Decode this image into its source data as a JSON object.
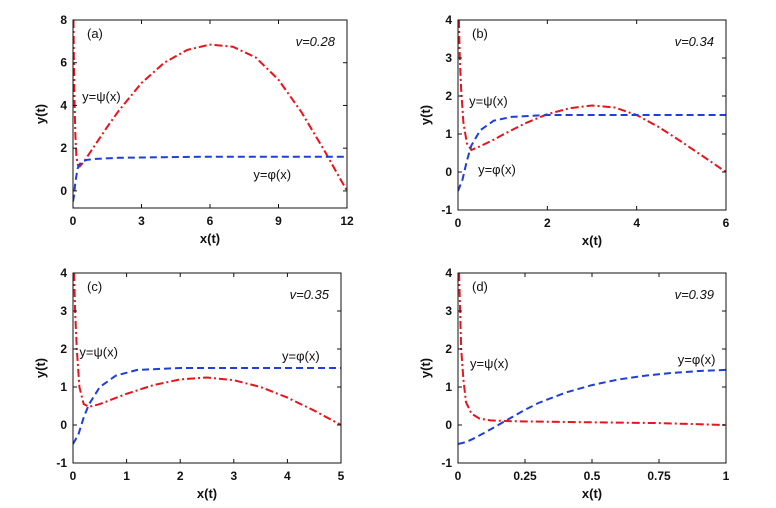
{
  "chart_data": [
    {
      "type": "line",
      "panel_label": "(a)",
      "v_label": "v=0.28",
      "xlabel": "x(t)",
      "ylabel": "y(t)",
      "xlim": [
        0,
        12
      ],
      "ylim": [
        -0.8,
        8
      ],
      "xticks": [
        0,
        3,
        6,
        9,
        12
      ],
      "xtick_labels": [
        "0",
        "3",
        "6",
        "9",
        "12"
      ],
      "yticks": [
        0,
        2,
        4,
        6,
        8
      ],
      "ytick_labels": [
        "0",
        "2",
        "4",
        "6",
        "8"
      ],
      "series": [
        {
          "name": "y=ψ(x)",
          "color": "#e8131b",
          "style": "dashdot",
          "points": [
            [
              0.02,
              8.0
            ],
            [
              0.04,
              6.0
            ],
            [
              0.06,
              4.5
            ],
            [
              0.1,
              2.7
            ],
            [
              0.15,
              1.6
            ],
            [
              0.22,
              1.2
            ],
            [
              0.3,
              1.15
            ],
            [
              0.5,
              1.4
            ],
            [
              1.0,
              2.2
            ],
            [
              1.5,
              3.0
            ],
            [
              2.0,
              3.75
            ],
            [
              3.0,
              5.05
            ],
            [
              4.0,
              6.0
            ],
            [
              5.0,
              6.6
            ],
            [
              6.0,
              6.85
            ],
            [
              7.0,
              6.75
            ],
            [
              8.0,
              6.25
            ],
            [
              9.0,
              5.2
            ],
            [
              10.0,
              3.7
            ],
            [
              11.0,
              1.9
            ],
            [
              11.5,
              0.95
            ],
            [
              12.0,
              0.0
            ]
          ]
        },
        {
          "name": "y=φ(x)",
          "color": "#1f3fd6",
          "style": "dashed",
          "points": [
            [
              0.0,
              -0.5
            ],
            [
              0.05,
              -0.2
            ],
            [
              0.1,
              0.4
            ],
            [
              0.2,
              1.05
            ],
            [
              0.35,
              1.35
            ],
            [
              0.6,
              1.45
            ],
            [
              1.0,
              1.5
            ],
            [
              2.0,
              1.55
            ],
            [
              4.0,
              1.58
            ],
            [
              6.0,
              1.6
            ],
            [
              9.0,
              1.6
            ],
            [
              12.0,
              1.6
            ]
          ]
        }
      ],
      "annotations": [
        {
          "text": "y=ψ(x)",
          "x": 0.4,
          "y": 4.2
        },
        {
          "text": "y=φ(x)",
          "x": 7.9,
          "y": 0.55
        }
      ]
    },
    {
      "type": "line",
      "panel_label": "(b)",
      "v_label": "v=0.34",
      "xlabel": "x(t)",
      "ylabel": "y(t)",
      "xlim": [
        0,
        6
      ],
      "ylim": [
        -1,
        4
      ],
      "xticks": [
        0,
        2,
        4,
        6
      ],
      "xtick_labels": [
        "0",
        "2",
        "4",
        "6"
      ],
      "yticks": [
        -1,
        0,
        1,
        2,
        3,
        4
      ],
      "ytick_labels": [
        "-1",
        "0",
        "1",
        "2",
        "3",
        "4"
      ],
      "series": [
        {
          "name": "y=ψ(x)",
          "color": "#e8131b",
          "style": "dashdot",
          "points": [
            [
              0.02,
              4.0
            ],
            [
              0.04,
              3.0
            ],
            [
              0.07,
              2.2
            ],
            [
              0.12,
              1.3
            ],
            [
              0.2,
              0.75
            ],
            [
              0.3,
              0.58
            ],
            [
              0.5,
              0.68
            ],
            [
              0.8,
              0.85
            ],
            [
              1.0,
              0.98
            ],
            [
              1.5,
              1.28
            ],
            [
              2.0,
              1.52
            ],
            [
              2.5,
              1.68
            ],
            [
              3.0,
              1.75
            ],
            [
              3.5,
              1.7
            ],
            [
              4.0,
              1.5
            ],
            [
              4.5,
              1.18
            ],
            [
              5.0,
              0.8
            ],
            [
              5.5,
              0.4
            ],
            [
              6.0,
              0.0
            ]
          ]
        },
        {
          "name": "y=φ(x)",
          "color": "#1f3fd6",
          "style": "dashed",
          "points": [
            [
              0.0,
              -0.5
            ],
            [
              0.1,
              -0.2
            ],
            [
              0.2,
              0.3
            ],
            [
              0.3,
              0.7
            ],
            [
              0.5,
              1.1
            ],
            [
              0.8,
              1.35
            ],
            [
              1.2,
              1.45
            ],
            [
              2.0,
              1.5
            ],
            [
              3.0,
              1.5
            ],
            [
              4.0,
              1.5
            ],
            [
              6.0,
              1.5
            ]
          ]
        }
      ],
      "annotations": [
        {
          "text": "y=ψ(x)",
          "x": 0.25,
          "y": 1.75
        },
        {
          "text": "y=φ(x)",
          "x": 0.45,
          "y": -0.05
        }
      ]
    },
    {
      "type": "line",
      "panel_label": "(c)",
      "v_label": "v=0.35",
      "xlabel": "x(t)",
      "ylabel": "y(t)",
      "xlim": [
        0,
        5
      ],
      "ylim": [
        -1,
        4
      ],
      "xticks": [
        0,
        1,
        2,
        3,
        4,
        5
      ],
      "xtick_labels": [
        "0",
        "1",
        "2",
        "3",
        "4",
        "5"
      ],
      "yticks": [
        -1,
        0,
        1,
        2,
        3,
        4
      ],
      "ytick_labels": [
        "-1",
        "0",
        "1",
        "2",
        "3",
        "4"
      ],
      "series": [
        {
          "name": "y=ψ(x)",
          "color": "#e8131b",
          "style": "dashdot",
          "points": [
            [
              0.02,
              4.0
            ],
            [
              0.04,
              3.0
            ],
            [
              0.07,
              2.0
            ],
            [
              0.12,
              1.0
            ],
            [
              0.2,
              0.55
            ],
            [
              0.3,
              0.48
            ],
            [
              0.5,
              0.55
            ],
            [
              1.0,
              0.82
            ],
            [
              1.5,
              1.05
            ],
            [
              2.0,
              1.2
            ],
            [
              2.5,
              1.25
            ],
            [
              3.0,
              1.18
            ],
            [
              3.5,
              1.0
            ],
            [
              4.0,
              0.72
            ],
            [
              4.5,
              0.38
            ],
            [
              5.0,
              0.0
            ]
          ]
        },
        {
          "name": "y=φ(x)",
          "color": "#1f3fd6",
          "style": "dashed",
          "points": [
            [
              0.0,
              -0.5
            ],
            [
              0.1,
              -0.25
            ],
            [
              0.2,
              0.2
            ],
            [
              0.3,
              0.55
            ],
            [
              0.5,
              1.0
            ],
            [
              0.8,
              1.3
            ],
            [
              1.2,
              1.45
            ],
            [
              2.0,
              1.5
            ],
            [
              3.0,
              1.5
            ],
            [
              4.0,
              1.5
            ],
            [
              5.0,
              1.5
            ]
          ]
        }
      ],
      "annotations": [
        {
          "text": "y=ψ(x)",
          "x": 0.12,
          "y": 1.8
        },
        {
          "text": "y=φ(x)",
          "x": 3.9,
          "y": 1.7
        }
      ]
    },
    {
      "type": "line",
      "panel_label": "(d)",
      "v_label": "v=0.39",
      "xlabel": "x(t)",
      "ylabel": "y(t)",
      "xlim": [
        0,
        1
      ],
      "ylim": [
        -1,
        4
      ],
      "xticks": [
        0,
        0.25,
        0.5,
        0.75,
        1
      ],
      "xtick_labels": [
        "0",
        "0.25",
        "0.5",
        "0.75",
        "1"
      ],
      "yticks": [
        -1,
        0,
        1,
        2,
        3,
        4
      ],
      "ytick_labels": [
        "-1",
        "0",
        "1",
        "2",
        "3",
        "4"
      ],
      "series": [
        {
          "name": "y=ψ(x)",
          "color": "#e8131b",
          "style": "dashdot",
          "points": [
            [
              0.004,
              4.0
            ],
            [
              0.008,
              3.0
            ],
            [
              0.012,
              2.0
            ],
            [
              0.02,
              1.2
            ],
            [
              0.03,
              0.6
            ],
            [
              0.05,
              0.3
            ],
            [
              0.08,
              0.17
            ],
            [
              0.12,
              0.12
            ],
            [
              0.2,
              0.1
            ],
            [
              0.3,
              0.09
            ],
            [
              0.5,
              0.07
            ],
            [
              0.75,
              0.05
            ],
            [
              1.0,
              0.0
            ]
          ]
        },
        {
          "name": "y=φ(x)",
          "color": "#1f3fd6",
          "style": "dashed",
          "points": [
            [
              0.0,
              -0.5
            ],
            [
              0.03,
              -0.45
            ],
            [
              0.06,
              -0.35
            ],
            [
              0.1,
              -0.2
            ],
            [
              0.15,
              0.0
            ],
            [
              0.2,
              0.2
            ],
            [
              0.25,
              0.4
            ],
            [
              0.3,
              0.58
            ],
            [
              0.4,
              0.85
            ],
            [
              0.5,
              1.05
            ],
            [
              0.6,
              1.2
            ],
            [
              0.7,
              1.3
            ],
            [
              0.8,
              1.37
            ],
            [
              0.9,
              1.42
            ],
            [
              1.0,
              1.45
            ]
          ]
        }
      ],
      "annotations": [
        {
          "text": "y=ψ(x)",
          "x": 0.045,
          "y": 1.5
        },
        {
          "text": "y=φ(x)",
          "x": 0.82,
          "y": 1.6
        }
      ]
    }
  ]
}
